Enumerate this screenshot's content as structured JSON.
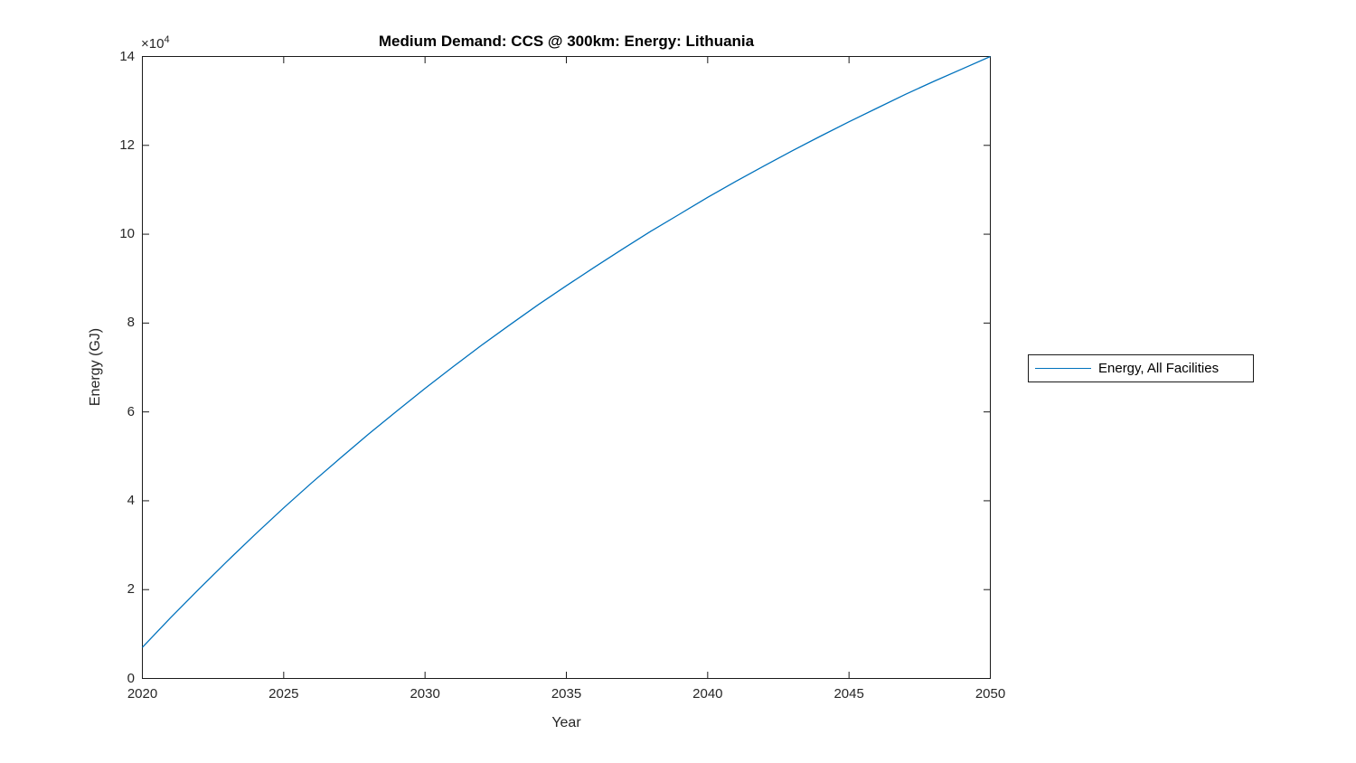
{
  "figure": {
    "background": "#ffffff"
  },
  "chart_data": {
    "type": "line",
    "title": "Medium Demand: CCS @ 300km: Energy: Lithuania",
    "xlabel": "Year",
    "ylabel": "Energy (GJ)",
    "y_exponent": {
      "base": "×10",
      "power": "4"
    },
    "xlim": [
      2020,
      2050
    ],
    "ylim": [
      0,
      140000
    ],
    "xticks": [
      2020,
      2025,
      2030,
      2035,
      2040,
      2045,
      2050
    ],
    "xtick_labels": [
      "2020",
      "2025",
      "2030",
      "2035",
      "2040",
      "2045",
      "2050"
    ],
    "yticks": [
      0,
      20000,
      40000,
      60000,
      80000,
      100000,
      120000,
      140000
    ],
    "ytick_labels": [
      "0",
      "2",
      "4",
      "6",
      "8",
      "10",
      "12",
      "14"
    ],
    "grid": false,
    "axes_color": "#1a1a1a",
    "legend": {
      "position": "right-outside",
      "entries": [
        {
          "label": "Energy, All Facilities",
          "color": "#0072BD"
        }
      ]
    },
    "series": [
      {
        "name": "Energy, All Facilities",
        "color": "#0072BD",
        "x": [
          2020,
          2021,
          2022,
          2023,
          2024,
          2025,
          2026,
          2027,
          2028,
          2029,
          2030,
          2031,
          2032,
          2033,
          2034,
          2035,
          2036,
          2037,
          2038,
          2039,
          2040,
          2041,
          2042,
          2043,
          2044,
          2045,
          2046,
          2047,
          2048,
          2049,
          2050
        ],
        "values": [
          7000,
          13700,
          20100,
          26400,
          32500,
          38400,
          44100,
          49600,
          55000,
          60200,
          65300,
          70200,
          75000,
          79600,
          84100,
          88400,
          92600,
          96700,
          100700,
          104500,
          108300,
          111900,
          115400,
          118800,
          122100,
          125300,
          128400,
          131500,
          134400,
          137200,
          140000
        ]
      }
    ]
  }
}
